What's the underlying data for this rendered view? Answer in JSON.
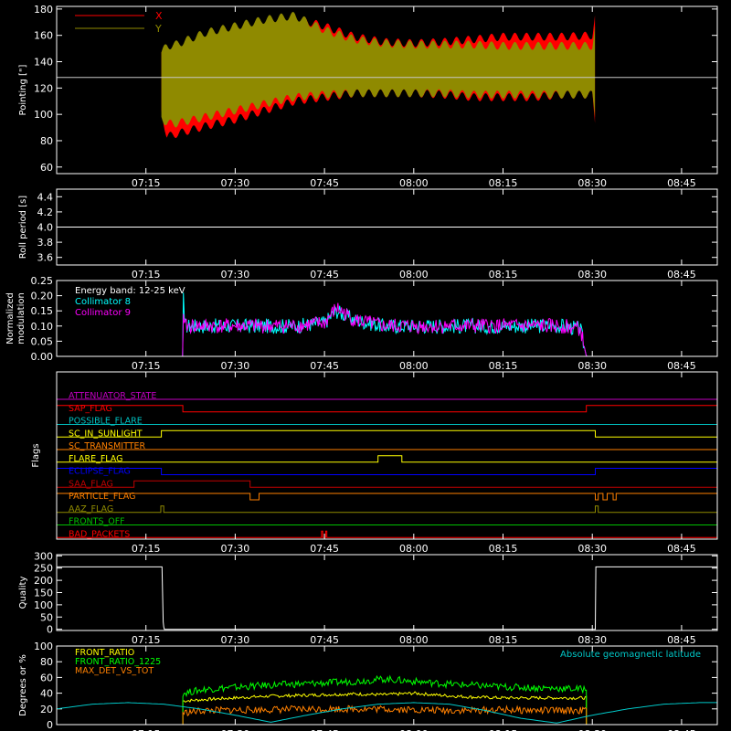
{
  "time_axis": {
    "ticks": [
      "07:15",
      "07:30",
      "07:45",
      "08:00",
      "08:15",
      "08:30",
      "08:45"
    ],
    "tick_minutes": [
      435,
      450,
      465,
      480,
      495,
      510,
      525
    ],
    "xlim_minutes": [
      420,
      531
    ]
  },
  "colors": {
    "background": "#000000",
    "axis": "#ffffff",
    "red": "#ff0000",
    "olive": "#8f8a00",
    "cyan": "#00ffff",
    "magenta": "#ff00ff",
    "yellow": "#ffff00",
    "green": "#00ff00",
    "blue": "#0000ff",
    "orange": "#ff8000",
    "purple": "#c000c0",
    "dark_red": "#c00000"
  },
  "chart_data": [
    {
      "id": "pointing",
      "type": "area",
      "ylabel": "Pointing [\"]",
      "ylim": [
        55,
        182
      ],
      "yticks": [
        60,
        80,
        100,
        120,
        140,
        160,
        180
      ],
      "reference_line": 128,
      "legend": [
        {
          "name": "X",
          "color": "#ff0000"
        },
        {
          "name": "Y",
          "color": "#8f8a00"
        }
      ],
      "series": [
        {
          "name": "X",
          "x": [
            437.6,
            438.5,
            440,
            445,
            450,
            455,
            460,
            465,
            470,
            475,
            480,
            485,
            490,
            495,
            500,
            505,
            510,
            510.5
          ],
          "upper": [
            150,
            152,
            152,
            160,
            165,
            172,
            176,
            170,
            162,
            158,
            157,
            158,
            160,
            162,
            162,
            162,
            163,
            178
          ],
          "lower": [
            100,
            80,
            82,
            88,
            93,
            100,
            107,
            110,
            113,
            113,
            113,
            112,
            110,
            110,
            110,
            112,
            112,
            90
          ]
        },
        {
          "name": "Y",
          "x": [
            437.6,
            438.5,
            440,
            445,
            450,
            455,
            460,
            465,
            470,
            475,
            480,
            485,
            490,
            495,
            500,
            505,
            510,
            510.5
          ],
          "upper": [
            150,
            155,
            156,
            165,
            170,
            175,
            178,
            167,
            160,
            157,
            156,
            156,
            156,
            155,
            155,
            155,
            155,
            170
          ],
          "lower": [
            95,
            90,
            90,
            95,
            100,
            105,
            110,
            112,
            113,
            113,
            113,
            113,
            112,
            112,
            112,
            112,
            112,
            95
          ]
        }
      ]
    },
    {
      "id": "roll",
      "type": "line",
      "ylabel": "Roll period [s]",
      "ylim": [
        3.5,
        4.5
      ],
      "yticks": [
        3.6,
        3.8,
        4.0,
        4.2,
        4.4
      ],
      "ytick_labels": [
        "3.6",
        "3.8",
        "4.0",
        "4.2",
        "4.4"
      ],
      "series": [
        {
          "name": "",
          "x": [
            420,
            531
          ],
          "y": [
            4.0,
            4.0
          ]
        }
      ]
    },
    {
      "id": "modulation",
      "type": "line",
      "ylabel": "Normalized modulation",
      "ylim": [
        0,
        0.25
      ],
      "yticks": [
        0,
        0.05,
        0.1,
        0.15,
        0.2,
        0.25
      ],
      "ytick_labels": [
        "0.00",
        "0.05",
        "0.10",
        "0.15",
        "0.20",
        "0.25"
      ],
      "annotation": "Energy band: 12-25 keV",
      "series": [
        {
          "name": "Collimator 8",
          "x": [
            420,
            441.2,
            441.3,
            441.5,
            445,
            450,
            455,
            460,
            465,
            467,
            470,
            475,
            480,
            485,
            490,
            495,
            500,
            505,
            508,
            509,
            531
          ],
          "y": [
            0,
            0,
            0.21,
            0.1,
            0.1,
            0.1,
            0.1,
            0.1,
            0.11,
            0.15,
            0.12,
            0.1,
            0.1,
            0.1,
            0.1,
            0.1,
            0.1,
            0.1,
            0.09,
            0,
            0
          ]
        },
        {
          "name": "Collimator 9",
          "x": [
            420,
            441.2,
            441.3,
            441.5,
            445,
            450,
            455,
            460,
            465,
            467,
            470,
            475,
            480,
            485,
            490,
            495,
            500,
            505,
            508,
            509,
            531
          ],
          "y": [
            0,
            0,
            0.14,
            0.1,
            0.1,
            0.1,
            0.1,
            0.1,
            0.11,
            0.16,
            0.12,
            0.1,
            0.1,
            0.1,
            0.1,
            0.1,
            0.1,
            0.1,
            0.09,
            0,
            0
          ]
        }
      ]
    },
    {
      "id": "flags",
      "type": "line",
      "ylabel": "Flags",
      "series": [
        {
          "name": "ATTENUATOR_STATE",
          "color": "#c000c0",
          "segments": [
            [
              420,
              531,
              0
            ]
          ]
        },
        {
          "name": "SAP_FLAG",
          "color": "#ff0000",
          "segments": [
            [
              420,
              441.2,
              1
            ],
            [
              441.2,
              509,
              0
            ],
            [
              509,
              531,
              1
            ]
          ]
        },
        {
          "name": "POSSIBLE_FLARE",
          "color": "#00c0c0",
          "segments": [
            [
              420,
              531,
              0
            ]
          ]
        },
        {
          "name": "SC_IN_SUNLIGHT",
          "color": "#ffff00",
          "segments": [
            [
              420,
              437.6,
              0
            ],
            [
              437.6,
              510.5,
              1
            ],
            [
              510.5,
              531,
              0
            ]
          ]
        },
        {
          "name": "SC_TRANSMITTER",
          "color": "#ff8000",
          "segments": [
            [
              420,
              531,
              0
            ]
          ]
        },
        {
          "name": "FLARE_FLAG",
          "color": "#ffff00",
          "segments": [
            [
              420,
              474,
              0
            ],
            [
              474,
              478,
              1
            ],
            [
              478,
              531,
              0
            ]
          ]
        },
        {
          "name": "ECLIPSE_FLAG",
          "color": "#0000ff",
          "segments": [
            [
              420,
              437.6,
              1
            ],
            [
              437.6,
              510.5,
              0
            ],
            [
              510.5,
              531,
              1
            ]
          ]
        },
        {
          "name": "SAA_FLAG",
          "color": "#c00000",
          "segments": [
            [
              420,
              433,
              0
            ],
            [
              433,
              452.5,
              1
            ],
            [
              452.5,
              531,
              0
            ]
          ]
        },
        {
          "name": "PARTICLE_FLAG",
          "color": "#ff8000",
          "segments": [
            [
              420,
              452.5,
              1
            ],
            [
              452.5,
              454,
              0
            ],
            [
              454,
              510.5,
              1
            ],
            [
              510.5,
              511,
              0
            ],
            [
              511,
              511.8,
              1
            ],
            [
              511.8,
              512.5,
              0
            ],
            [
              512.5,
              513.5,
              1
            ],
            [
              513.5,
              514,
              0
            ],
            [
              514,
              531,
              1
            ]
          ]
        },
        {
          "name": "AAZ_FLAG",
          "color": "#8f8a00",
          "segments": [
            [
              420,
              437.5,
              0
            ],
            [
              437.5,
              438,
              1
            ],
            [
              438,
              510.5,
              0
            ],
            [
              510.5,
              511,
              1
            ],
            [
              511,
              531,
              0
            ]
          ]
        },
        {
          "name": "FRONTS_OFF",
          "color": "#00c000",
          "segments": [
            [
              420,
              531,
              0
            ]
          ]
        },
        {
          "name": "BAD_PACKETS",
          "color": "#ff0000",
          "segments": [
            [
              420,
              464.5,
              0
            ],
            [
              464.5,
              464.7,
              1
            ],
            [
              464.7,
              465.2,
              0
            ],
            [
              465.2,
              465.4,
              1
            ],
            [
              465.4,
              531,
              0
            ]
          ]
        }
      ]
    },
    {
      "id": "quality",
      "type": "line",
      "ylabel": "Quality",
      "ylim": [
        -5,
        305
      ],
      "yticks": [
        0,
        50,
        100,
        150,
        200,
        250,
        300
      ],
      "series": [
        {
          "name": "",
          "x": [
            420,
            437.7,
            437.9,
            438,
            438.1,
            510.5,
            510.6,
            531
          ],
          "y": [
            255,
            255,
            30,
            10,
            0,
            0,
            255,
            255
          ]
        }
      ]
    },
    {
      "id": "ratios",
      "type": "line",
      "ylabel": "Degrees or %",
      "ylim": [
        0,
        100
      ],
      "yticks": [
        0,
        20,
        40,
        60,
        80,
        100
      ],
      "annotation": "Absolute geomagnetic latitude",
      "series": [
        {
          "name": "FRONT_RATIO",
          "color": "#ffff00",
          "x": [
            441.2,
            445,
            455,
            465,
            470,
            475,
            480,
            485,
            490,
            495,
            500,
            505,
            509
          ],
          "y": [
            30,
            32,
            36,
            38,
            39,
            38,
            40,
            37,
            35,
            34,
            34,
            34,
            34
          ]
        },
        {
          "name": "FRONT_RATIO_1225",
          "color": "#00ff00",
          "x": [
            441.2,
            445,
            455,
            465,
            470,
            475,
            480,
            485,
            490,
            495,
            500,
            505,
            509
          ],
          "y": [
            40,
            45,
            50,
            53,
            55,
            58,
            55,
            52,
            50,
            48,
            47,
            46,
            45
          ]
        },
        {
          "name": "MAX_DET_VS_TOT",
          "color": "#ff8000",
          "x": [
            441.2,
            445,
            455,
            465,
            470,
            475,
            480,
            485,
            490,
            495,
            500,
            505,
            509
          ],
          "y": [
            15,
            18,
            19,
            20,
            20,
            20,
            19,
            18,
            18,
            19,
            18,
            18,
            18
          ]
        },
        {
          "name": "Absolute geomagnetic latitude",
          "color": "#00c8c8",
          "x": [
            420,
            426,
            432,
            438,
            444,
            450,
            456,
            462,
            468,
            474,
            480,
            486,
            492,
            498,
            504,
            510,
            516,
            522,
            528,
            531
          ],
          "y": [
            20,
            26,
            28,
            26,
            20,
            12,
            3,
            12,
            20,
            26,
            28,
            26,
            18,
            8,
            2,
            12,
            20,
            26,
            28,
            28
          ]
        }
      ]
    }
  ]
}
